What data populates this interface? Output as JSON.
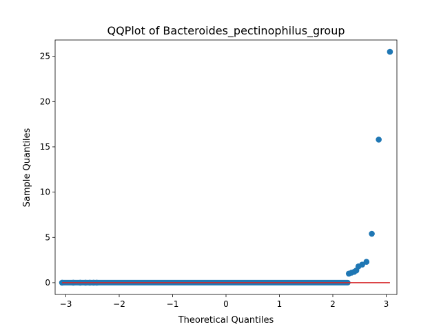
{
  "chart_data": {
    "type": "scatter",
    "title": "QQPlot of Bacteroides_pectinophilus_group",
    "xlabel": "Theoretical Quantiles",
    "ylabel": "Sample Quantiles",
    "xlim": [
      -3.2,
      3.2
    ],
    "ylim": [
      -1.3,
      26.8
    ],
    "x_ticks": [
      -3,
      -2,
      -1,
      0,
      1,
      2,
      3
    ],
    "x_tick_labels": [
      "−3",
      "−2",
      "−1",
      "0",
      "1",
      "2",
      "3"
    ],
    "y_ticks": [
      0,
      5,
      10,
      15,
      20,
      25
    ],
    "y_tick_labels": [
      "0",
      "5",
      "10",
      "15",
      "20",
      "25"
    ],
    "grid": false,
    "zero_band": {
      "from": -3.07,
      "to": 2.28,
      "y": 0
    },
    "points": {
      "x": [
        -3.07,
        -2.86,
        -2.73,
        -2.63,
        -2.55,
        -2.48,
        -2.42,
        2.3,
        2.35,
        2.4,
        2.44,
        2.48,
        2.55,
        2.63,
        2.73,
        2.86,
        3.07
      ],
      "y": [
        0,
        0,
        0,
        0,
        0,
        0,
        0,
        1.0,
        1.1,
        1.2,
        1.35,
        1.8,
        2.0,
        2.3,
        5.4,
        15.8,
        25.5
      ]
    },
    "reference_line": {
      "x": [
        -3.07,
        3.07
      ],
      "y": [
        0,
        0
      ]
    },
    "marker_color": "#1f77b4",
    "line_color": "#d62728"
  }
}
